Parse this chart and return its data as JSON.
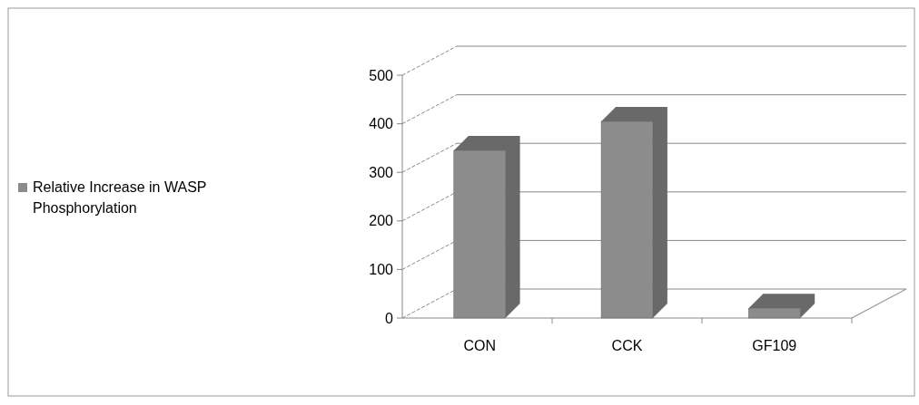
{
  "chart_data": {
    "type": "bar",
    "categories": [
      "CON",
      "CCK",
      "GF109"
    ],
    "series": [
      {
        "name": "Relative Increase in WASP Phosphorylation",
        "color": "#8c8c8c",
        "values": [
          345,
          405,
          20
        ]
      }
    ],
    "ylim": [
      0,
      500
    ],
    "yticks": [
      0,
      100,
      200,
      300,
      400,
      500
    ],
    "grid": "y",
    "legend": "left"
  }
}
